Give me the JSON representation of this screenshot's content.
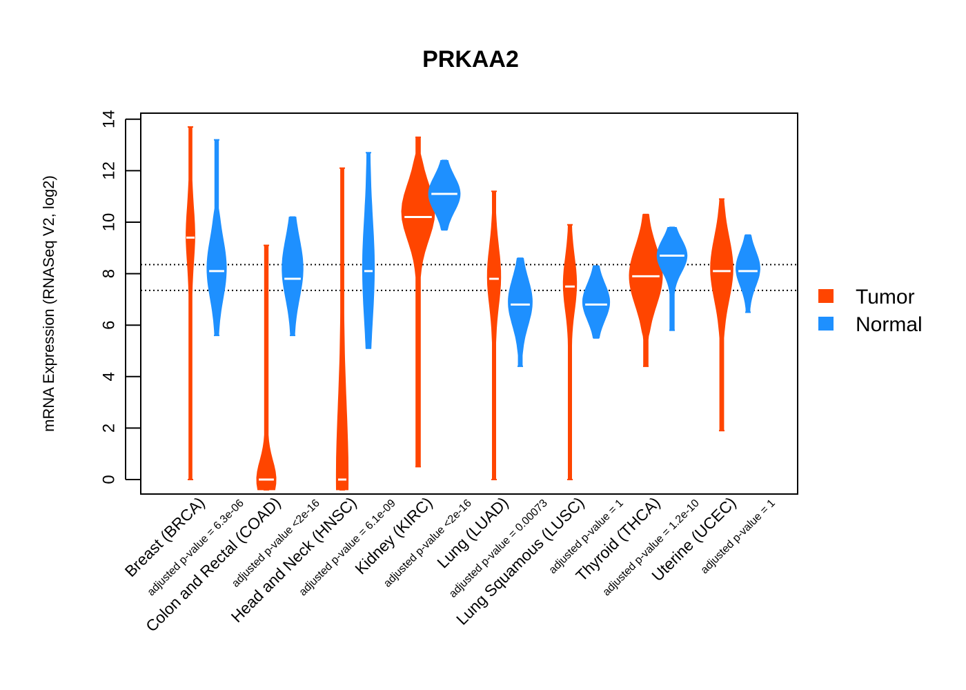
{
  "chart_data": {
    "type": "violin",
    "title": "PRKAA2",
    "xlabel": "",
    "ylabel": "mRNA Expression (RNASeq V2, log2)",
    "ylim": [
      -0.5,
      14.3
    ],
    "yticks": [
      0,
      2,
      4,
      6,
      8,
      10,
      12,
      14
    ],
    "reference_lines": [
      7.35,
      8.35
    ],
    "legend": {
      "position": "right",
      "entries": [
        {
          "name": "Tumor",
          "color": "#ff4500"
        },
        {
          "name": "Normal",
          "color": "#1e90ff"
        }
      ]
    },
    "categories": [
      {
        "label": "Breast (BRCA)",
        "pvalue": "adjusted p-value = 6.3e-06",
        "tumor": {
          "min": 0,
          "max": 13.7,
          "median": 9.4,
          "body_low": 7.2,
          "body_high": 11.3,
          "peak": 9.5,
          "width": 0.2
        },
        "normal": {
          "min": 5.6,
          "max": 13.2,
          "median": 8.1,
          "body_low": 5.6,
          "body_high": 10.2,
          "peak": 8.2,
          "width": 0.55
        }
      },
      {
        "label": "Colon and Rectal (COAD)",
        "pvalue": "adjusted p-value <2e-16",
        "tumor": {
          "min": -0.4,
          "max": 9.1,
          "median": 0,
          "body_low": -0.4,
          "body_high": 2.5,
          "peak": 0,
          "width": 0.55
        },
        "normal": {
          "min": 5.6,
          "max": 10.2,
          "median": 7.8,
          "body_low": 5.6,
          "body_high": 10.2,
          "peak": 8.2,
          "width": 0.6
        }
      },
      {
        "label": "Head and Neck (HNSC)",
        "pvalue": "adjusted p-value = 6.1e-09",
        "tumor": {
          "min": -0.4,
          "max": 12.1,
          "median": 0,
          "body_low": -0.4,
          "body_high": 10.4,
          "peak": 0.1,
          "width": 0.3
        },
        "normal": {
          "min": 5.1,
          "max": 12.7,
          "median": 8.1,
          "body_low": 5.1,
          "body_high": 12.7,
          "peak": 8.2,
          "width": 0.3
        }
      },
      {
        "label": "Kidney (KIRC)",
        "pvalue": "adjusted p-value <2e-16",
        "tumor": {
          "min": 0.5,
          "max": 13.3,
          "median": 10.2,
          "body_low": 8.0,
          "body_high": 12.3,
          "peak": 10.4,
          "width": 1.0
        },
        "normal": {
          "min": 9.7,
          "max": 12.4,
          "median": 11.1,
          "body_low": 9.7,
          "body_high": 12.4,
          "peak": 11.1,
          "width": 0.95
        }
      },
      {
        "label": "Lung (LUAD)",
        "pvalue": "adjusted p-value = 0.00073",
        "tumor": {
          "min": 0,
          "max": 11.2,
          "median": 7.8,
          "body_low": 5.5,
          "body_high": 10.0,
          "peak": 7.9,
          "width": 0.35
        },
        "normal": {
          "min": 4.4,
          "max": 8.6,
          "median": 6.8,
          "body_low": 5.0,
          "body_high": 8.6,
          "peak": 6.9,
          "width": 0.7
        }
      },
      {
        "label": "Lung Squamous (LUSC)",
        "pvalue": "adjusted p-value = 1",
        "tumor": {
          "min": 0,
          "max": 9.9,
          "median": 7.5,
          "body_low": 5.5,
          "body_high": 9.5,
          "peak": 7.6,
          "width": 0.35
        },
        "normal": {
          "min": 5.5,
          "max": 8.3,
          "median": 6.8,
          "body_low": 5.5,
          "body_high": 8.3,
          "peak": 6.9,
          "width": 0.8
        }
      },
      {
        "label": "Thyroid (THCA)",
        "pvalue": "adjusted p-value = 1.2e-10",
        "tumor": {
          "min": 4.4,
          "max": 10.3,
          "median": 7.9,
          "body_low": 5.8,
          "body_high": 10.3,
          "peak": 7.9,
          "width": 1.0
        },
        "normal": {
          "min": 5.8,
          "max": 9.8,
          "median": 8.7,
          "body_low": 7.3,
          "body_high": 9.8,
          "peak": 8.7,
          "width": 0.9
        }
      },
      {
        "label": "Uterine (UCEC)",
        "pvalue": "adjusted p-value = 1",
        "tumor": {
          "min": 1.9,
          "max": 10.9,
          "median": 8.1,
          "body_low": 5.8,
          "body_high": 10.6,
          "peak": 8.2,
          "width": 0.65
        },
        "normal": {
          "min": 6.5,
          "max": 9.5,
          "median": 8.1,
          "body_low": 6.8,
          "body_high": 9.5,
          "peak": 8.2,
          "width": 0.7
        }
      }
    ]
  }
}
